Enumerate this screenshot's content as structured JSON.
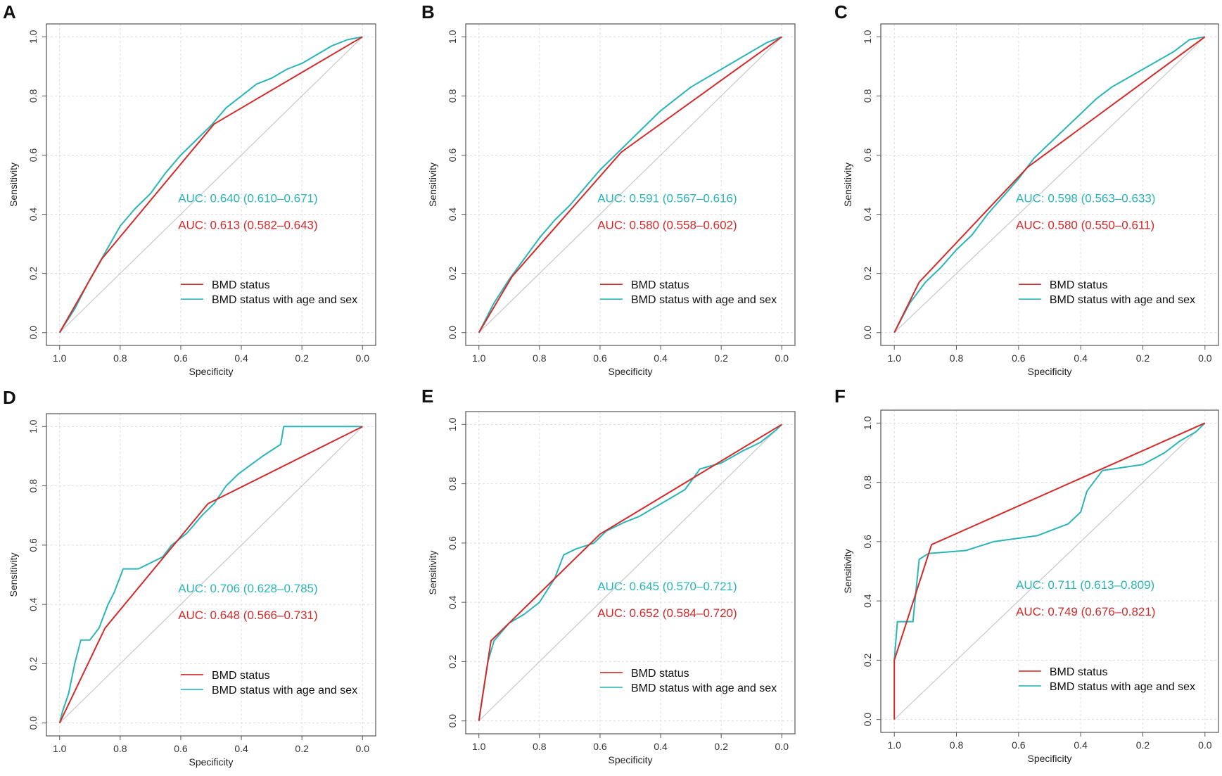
{
  "colors": {
    "model1": "#d42a2a",
    "model2": "#2ab5b8",
    "diagonal": "#c8c8c8",
    "grid": "#dedede",
    "frame": "#555555"
  },
  "chart_data": [
    {
      "panel": "A",
      "type": "line",
      "xlabel": "Specificity",
      "ylabel": "Sensitivity",
      "xlim": [
        1.0,
        0.0
      ],
      "ylim": [
        0.0,
        1.0
      ],
      "x_ticks": [
        "1.0",
        "0.8",
        "0.6",
        "0.4",
        "0.2",
        "0.0"
      ],
      "y_ticks": [
        "0.0",
        "0.2",
        "0.4",
        "0.6",
        "0.8",
        "1.0"
      ],
      "grid": true,
      "legend_position": "bottom-right",
      "annotations": [
        {
          "series": "BMD status with age and sex",
          "text": "AUC: 0.640 (0.610–0.671)"
        },
        {
          "series": "BMD status",
          "text": "AUC: 0.613 (0.582–0.643)"
        }
      ],
      "series": [
        {
          "name": "BMD status",
          "specificity": [
            1.0,
            0.86,
            0.49,
            0.0
          ],
          "sensitivity": [
            0.0,
            0.25,
            0.705,
            1.0
          ]
        },
        {
          "name": "BMD status with age and sex",
          "specificity": [
            1.0,
            0.95,
            0.9,
            0.85,
            0.8,
            0.75,
            0.7,
            0.65,
            0.6,
            0.55,
            0.5,
            0.45,
            0.4,
            0.35,
            0.3,
            0.25,
            0.2,
            0.15,
            0.1,
            0.05,
            0.0
          ],
          "sensitivity": [
            0.0,
            0.08,
            0.18,
            0.27,
            0.36,
            0.42,
            0.47,
            0.54,
            0.6,
            0.65,
            0.7,
            0.76,
            0.8,
            0.84,
            0.86,
            0.89,
            0.91,
            0.94,
            0.97,
            0.99,
            1.0
          ]
        }
      ]
    },
    {
      "panel": "B",
      "type": "line",
      "xlabel": "Specificity",
      "ylabel": "Sensitivity",
      "xlim": [
        1.0,
        0.0
      ],
      "ylim": [
        0.0,
        1.0
      ],
      "x_ticks": [
        "1.0",
        "0.8",
        "0.6",
        "0.4",
        "0.2",
        "0.0"
      ],
      "y_ticks": [
        "0.0",
        "0.2",
        "0.4",
        "0.6",
        "0.8",
        "1.0"
      ],
      "grid": true,
      "legend_position": "bottom-right",
      "annotations": [
        {
          "series": "BMD status with age and sex",
          "text": "AUC: 0.591 (0.567–0.616)"
        },
        {
          "series": "BMD status",
          "text": "AUC: 0.580 (0.558–0.602)"
        }
      ],
      "series": [
        {
          "name": "BMD status",
          "specificity": [
            1.0,
            0.89,
            0.53,
            0.0
          ],
          "sensitivity": [
            0.0,
            0.19,
            0.61,
            1.0
          ]
        },
        {
          "name": "BMD status with age and sex",
          "specificity": [
            1.0,
            0.95,
            0.9,
            0.85,
            0.8,
            0.75,
            0.7,
            0.65,
            0.6,
            0.55,
            0.5,
            0.45,
            0.4,
            0.35,
            0.3,
            0.25,
            0.2,
            0.15,
            0.1,
            0.05,
            0.0
          ],
          "sensitivity": [
            0.0,
            0.1,
            0.18,
            0.25,
            0.32,
            0.38,
            0.43,
            0.49,
            0.55,
            0.6,
            0.65,
            0.7,
            0.75,
            0.79,
            0.83,
            0.86,
            0.89,
            0.92,
            0.95,
            0.98,
            1.0
          ]
        }
      ]
    },
    {
      "panel": "C",
      "type": "line",
      "xlabel": "Specificity",
      "ylabel": "Sensitivity",
      "xlim": [
        1.0,
        0.0
      ],
      "ylim": [
        0.0,
        1.0
      ],
      "x_ticks": [
        "1.0",
        "0.8",
        "0.6",
        "0.4",
        "0.2",
        "0.0"
      ],
      "y_ticks": [
        "0.0",
        "0.2",
        "0.4",
        "0.6",
        "0.8",
        "1.0"
      ],
      "grid": true,
      "legend_position": "bottom-right",
      "annotations": [
        {
          "series": "BMD status with age and sex",
          "text": "AUC: 0.598 (0.563–0.633)"
        },
        {
          "series": "BMD status",
          "text": "AUC: 0.580 (0.550–0.611)"
        }
      ],
      "series": [
        {
          "name": "BMD status",
          "specificity": [
            1.0,
            0.92,
            0.57,
            0.0
          ],
          "sensitivity": [
            0.0,
            0.17,
            0.56,
            1.0
          ]
        },
        {
          "name": "BMD status with age and sex",
          "specificity": [
            1.0,
            0.95,
            0.9,
            0.85,
            0.8,
            0.75,
            0.7,
            0.65,
            0.6,
            0.55,
            0.5,
            0.45,
            0.4,
            0.35,
            0.3,
            0.25,
            0.2,
            0.15,
            0.1,
            0.05,
            0.0
          ],
          "sensitivity": [
            0.0,
            0.1,
            0.17,
            0.22,
            0.28,
            0.33,
            0.4,
            0.46,
            0.52,
            0.59,
            0.64,
            0.69,
            0.74,
            0.79,
            0.83,
            0.86,
            0.89,
            0.92,
            0.95,
            0.99,
            1.0
          ]
        }
      ]
    },
    {
      "panel": "D",
      "type": "line",
      "xlabel": "Specificity",
      "ylabel": "Sensitivity",
      "xlim": [
        1.0,
        0.0
      ],
      "ylim": [
        0.0,
        1.0
      ],
      "x_ticks": [
        "1.0",
        "0.8",
        "0.6",
        "0.4",
        "0.2",
        "0.0"
      ],
      "y_ticks": [
        "0.0",
        "0.2",
        "0.4",
        "0.6",
        "0.8",
        "1.0"
      ],
      "grid": true,
      "legend_position": "bottom-right",
      "annotations": [
        {
          "series": "BMD status with age and sex",
          "text": "AUC: 0.706 (0.628–0.785)"
        },
        {
          "series": "BMD status",
          "text": "AUC: 0.648 (0.566–0.731)"
        }
      ],
      "series": [
        {
          "name": "BMD status",
          "specificity": [
            1.0,
            0.85,
            0.51,
            0.0
          ],
          "sensitivity": [
            0.0,
            0.32,
            0.74,
            1.0
          ]
        },
        {
          "name": "BMD status with age and sex",
          "specificity": [
            1.0,
            0.99,
            0.97,
            0.95,
            0.93,
            0.9,
            0.87,
            0.84,
            0.82,
            0.79,
            0.74,
            0.7,
            0.66,
            0.63,
            0.58,
            0.53,
            0.49,
            0.45,
            0.41,
            0.37,
            0.33,
            0.3,
            0.27,
            0.26,
            0.0
          ],
          "sensitivity": [
            0.0,
            0.04,
            0.1,
            0.2,
            0.28,
            0.28,
            0.32,
            0.4,
            0.44,
            0.52,
            0.52,
            0.54,
            0.56,
            0.6,
            0.64,
            0.7,
            0.74,
            0.8,
            0.84,
            0.87,
            0.9,
            0.92,
            0.94,
            1.0,
            1.0
          ]
        }
      ]
    },
    {
      "panel": "E",
      "type": "line",
      "xlabel": "Specificity",
      "ylabel": "Sensitivity",
      "xlim": [
        1.0,
        0.0
      ],
      "ylim": [
        0.0,
        1.0
      ],
      "x_ticks": [
        "1.0",
        "0.8",
        "0.6",
        "0.4",
        "0.2",
        "0.0"
      ],
      "y_ticks": [
        "0.0",
        "0.2",
        "0.4",
        "0.6",
        "0.8",
        "1.0"
      ],
      "grid": true,
      "legend_position": "bottom-right",
      "annotations": [
        {
          "series": "BMD status with age and sex",
          "text": "AUC: 0.645 (0.570–0.721)"
        },
        {
          "series": "BMD status",
          "text": "AUC: 0.652 (0.584–0.720)"
        }
      ],
      "series": [
        {
          "name": "BMD status",
          "specificity": [
            1.0,
            0.96,
            0.6,
            0.0
          ],
          "sensitivity": [
            0.0,
            0.27,
            0.63,
            1.0
          ]
        },
        {
          "name": "BMD status with age and sex",
          "specificity": [
            1.0,
            0.99,
            0.97,
            0.95,
            0.9,
            0.85,
            0.8,
            0.75,
            0.72,
            0.68,
            0.62,
            0.58,
            0.52,
            0.47,
            0.42,
            0.37,
            0.32,
            0.27,
            0.2,
            0.13,
            0.07,
            0.02,
            0.0
          ],
          "sensitivity": [
            0.0,
            0.07,
            0.2,
            0.27,
            0.33,
            0.36,
            0.4,
            0.48,
            0.56,
            0.58,
            0.6,
            0.64,
            0.67,
            0.69,
            0.72,
            0.75,
            0.78,
            0.85,
            0.87,
            0.91,
            0.94,
            0.98,
            1.0
          ]
        }
      ]
    },
    {
      "panel": "F",
      "type": "line",
      "xlabel": "Specificity",
      "ylabel": "Sensitivity",
      "xlim": [
        1.0,
        0.0
      ],
      "ylim": [
        0.0,
        1.0
      ],
      "x_ticks": [
        "1.0",
        "0.8",
        "0.6",
        "0.4",
        "0.2",
        "0.0"
      ],
      "y_ticks": [
        "0.0",
        "0.2",
        "0.4",
        "0.6",
        "0.8",
        "1.0"
      ],
      "grid": true,
      "legend_position": "bottom-right",
      "annotations": [
        {
          "series": "BMD status with age and sex",
          "text": "AUC: 0.711 (0.613–0.809)"
        },
        {
          "series": "BMD status",
          "text": "AUC: 0.749 (0.676–0.821)"
        }
      ],
      "series": [
        {
          "name": "BMD status",
          "specificity": [
            1.0,
            1.0,
            0.88,
            0.0
          ],
          "sensitivity": [
            0.0,
            0.2,
            0.59,
            1.0
          ]
        },
        {
          "name": "BMD status with age and sex",
          "specificity": [
            1.0,
            0.99,
            0.94,
            0.92,
            0.89,
            0.77,
            0.68,
            0.54,
            0.44,
            0.4,
            0.38,
            0.33,
            0.2,
            0.13,
            0.08,
            0.03,
            0.0
          ],
          "sensitivity": [
            0.2,
            0.33,
            0.33,
            0.54,
            0.56,
            0.57,
            0.6,
            0.62,
            0.66,
            0.7,
            0.77,
            0.84,
            0.86,
            0.9,
            0.94,
            0.97,
            1.0
          ]
        }
      ]
    }
  ]
}
